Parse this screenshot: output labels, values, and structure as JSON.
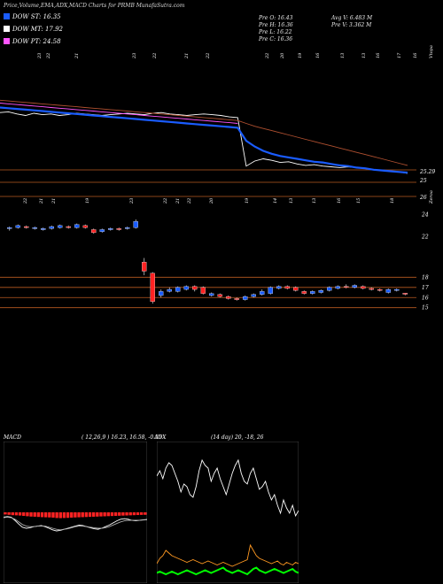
{
  "header": {
    "title": "Price,Volume,EMA,ADX,MACD Charts for PRMB MunafaSutra.com",
    "legend": [
      {
        "label": "DOW ST: 16.35",
        "color": "#1a5cff"
      },
      {
        "label": "DOW MT: 17.92",
        "color": "#ffffff"
      },
      {
        "label": "DOW PT: 24.58",
        "color": "#ff55ff"
      }
    ],
    "stats_col1": [
      "Pre O: 16.43",
      "Pre H: 16.36",
      "Pre L: 16.22",
      "Pre C: 16.36"
    ],
    "stats_col2": [
      "Avg V: 6.483 M",
      "Pre V: 3.362 M"
    ]
  },
  "colors": {
    "bull": "#1a5cff",
    "bear": "#ff2222",
    "ema_long": "#b05030",
    "gridline": "#b85a20",
    "macd_hist": "#ff2222",
    "adx_plus": "#00ff00",
    "adx_minus": "#ff9922"
  },
  "volume_labels": {
    "top": [
      "23",
      "22",
      "21",
      "23",
      "22",
      "21",
      "22",
      "22",
      "20",
      "19",
      "16",
      "13",
      "13",
      "16",
      "17",
      "16",
      "Vtopa"
    ],
    "bottom": [
      "22",
      "21",
      "21",
      "19",
      "23",
      "22",
      "21",
      "22",
      "20",
      "19",
      "14",
      "13",
      "13",
      "16",
      "15",
      "18",
      "Zeroa"
    ]
  },
  "chart_data": [
    {
      "type": "line",
      "panel": "ema",
      "ylabels": [
        "25.29",
        "25",
        "26"
      ],
      "series": [
        {
          "color": "#ffffff",
          "values": [
            24.9,
            25.0,
            24.7,
            24.5,
            24.8,
            24.6,
            24.7,
            24.5,
            24.6,
            24.8,
            24.7,
            24.6,
            24.5,
            24.6,
            24.7,
            24.8,
            24.7,
            24.6,
            24.8,
            24.9,
            24.7,
            24.6,
            24.5,
            24.6,
            24.7,
            24.6,
            24.5,
            24.3,
            24.2,
            17.5,
            18.2,
            18.5,
            18.3,
            18.0,
            18.1,
            17.8,
            17.6,
            17.7,
            17.5,
            17.4,
            17.3,
            17.4,
            17.3,
            17.2,
            17.0,
            16.9,
            16.8,
            16.7,
            16.5
          ]
        },
        {
          "color": "#1a5cff",
          "values": [
            25.6,
            25.5,
            25.4,
            25.3,
            25.2,
            25.1,
            25.0,
            24.9,
            24.8,
            24.7,
            24.6,
            24.5,
            24.4,
            24.3,
            24.2,
            24.1,
            24.0,
            23.9,
            23.8,
            23.7,
            23.6,
            23.5,
            23.4,
            23.3,
            23.2,
            23.1,
            23.0,
            22.9,
            22.8,
            21.0,
            20.2,
            19.6,
            19.2,
            18.9,
            18.7,
            18.5,
            18.3,
            18.1,
            18.0,
            17.8,
            17.6,
            17.5,
            17.3,
            17.2,
            17.0,
            16.9,
            16.8,
            16.7,
            16.6
          ]
        },
        {
          "color": "#ff55ff",
          "values": [
            26.2,
            26.1,
            26.0,
            25.9,
            25.8,
            25.7,
            25.6,
            25.5,
            25.4,
            25.3,
            25.2,
            25.1,
            25.0,
            24.9,
            24.8,
            24.7,
            24.6,
            24.5,
            24.4,
            24.3,
            24.2,
            24.1,
            24.0,
            23.9,
            23.8,
            23.7,
            23.6,
            23.5,
            23.4
          ]
        },
        {
          "color": "#b05030",
          "values": [
            26.6,
            26.5,
            26.4,
            26.3,
            26.2,
            26.1,
            26.0,
            25.9,
            25.8,
            25.7,
            25.6,
            25.5,
            25.4,
            25.3,
            25.2,
            25.1,
            25.0,
            24.9,
            24.8,
            24.7,
            24.6,
            24.5,
            24.4,
            24.3,
            24.2,
            24.1,
            24.0,
            23.9,
            23.8,
            23.4,
            23.0,
            22.7,
            22.4,
            22.1,
            21.8,
            21.5,
            21.2,
            20.9,
            20.6,
            20.3,
            20.0,
            19.7,
            19.4,
            19.1,
            18.8,
            18.5,
            18.2,
            17.9,
            17.6
          ]
        }
      ]
    },
    {
      "type": "candlestick",
      "panel": "price",
      "ylabels": [
        "24",
        "22",
        "18",
        "17",
        "16",
        "15"
      ],
      "candles": [
        {
          "o": 22.8,
          "c": 22.9,
          "h": 23.0,
          "l": 22.6
        },
        {
          "o": 22.9,
          "c": 23.1,
          "h": 23.2,
          "l": 22.8
        },
        {
          "o": 23.0,
          "c": 22.9,
          "h": 23.1,
          "l": 22.8
        },
        {
          "o": 22.8,
          "c": 22.9,
          "h": 23.0,
          "l": 22.7
        },
        {
          "o": 22.7,
          "c": 22.8,
          "h": 22.9,
          "l": 22.6
        },
        {
          "o": 22.8,
          "c": 23.0,
          "h": 23.1,
          "l": 22.7
        },
        {
          "o": 22.9,
          "c": 23.1,
          "h": 23.2,
          "l": 22.8
        },
        {
          "o": 23.0,
          "c": 22.9,
          "h": 23.1,
          "l": 22.8
        },
        {
          "o": 22.9,
          "c": 23.2,
          "h": 23.3,
          "l": 22.8
        },
        {
          "o": 23.1,
          "c": 22.9,
          "h": 23.2,
          "l": 22.8
        },
        {
          "o": 22.7,
          "c": 22.4,
          "h": 22.8,
          "l": 22.3
        },
        {
          "o": 22.5,
          "c": 22.7,
          "h": 22.8,
          "l": 22.4
        },
        {
          "o": 22.7,
          "c": 22.8,
          "h": 22.9,
          "l": 22.6
        },
        {
          "o": 22.8,
          "c": 22.7,
          "h": 22.9,
          "l": 22.6
        },
        {
          "o": 22.8,
          "c": 22.9,
          "h": 23.0,
          "l": 22.7
        },
        {
          "o": 22.9,
          "c": 23.5,
          "h": 23.7,
          "l": 22.8
        },
        {
          "o": 19.5,
          "c": 18.6,
          "h": 19.9,
          "l": 18.2
        },
        {
          "o": 18.4,
          "c": 15.6,
          "h": 18.5,
          "l": 15.4
        },
        {
          "o": 16.2,
          "c": 16.6,
          "h": 16.8,
          "l": 16.0
        },
        {
          "o": 16.6,
          "c": 16.8,
          "h": 17.0,
          "l": 16.5
        },
        {
          "o": 16.6,
          "c": 17.0,
          "h": 17.1,
          "l": 16.5
        },
        {
          "o": 16.8,
          "c": 17.1,
          "h": 17.2,
          "l": 16.7
        },
        {
          "o": 17.1,
          "c": 16.8,
          "h": 17.2,
          "l": 16.6
        },
        {
          "o": 17.0,
          "c": 16.4,
          "h": 17.1,
          "l": 16.3
        },
        {
          "o": 16.2,
          "c": 16.4,
          "h": 16.5,
          "l": 16.1
        },
        {
          "o": 16.3,
          "c": 16.1,
          "h": 16.4,
          "l": 16.0
        },
        {
          "o": 16.1,
          "c": 15.9,
          "h": 16.2,
          "l": 15.8
        },
        {
          "o": 15.9,
          "c": 15.8,
          "h": 16.0,
          "l": 15.7
        },
        {
          "o": 15.8,
          "c": 16.1,
          "h": 16.2,
          "l": 15.7
        },
        {
          "o": 16.1,
          "c": 16.3,
          "h": 16.4,
          "l": 16.0
        },
        {
          "o": 16.3,
          "c": 16.6,
          "h": 16.8,
          "l": 16.2
        },
        {
          "o": 16.4,
          "c": 17.0,
          "h": 17.1,
          "l": 16.3
        },
        {
          "o": 16.9,
          "c": 17.1,
          "h": 17.2,
          "l": 16.8
        },
        {
          "o": 17.1,
          "c": 16.9,
          "h": 17.2,
          "l": 16.8
        },
        {
          "o": 17.0,
          "c": 16.7,
          "h": 17.1,
          "l": 16.6
        },
        {
          "o": 16.6,
          "c": 16.4,
          "h": 16.7,
          "l": 16.3
        },
        {
          "o": 16.4,
          "c": 16.6,
          "h": 16.7,
          "l": 16.3
        },
        {
          "o": 16.5,
          "c": 16.7,
          "h": 16.8,
          "l": 16.4
        },
        {
          "o": 16.7,
          "c": 17.0,
          "h": 17.1,
          "l": 16.6
        },
        {
          "o": 16.9,
          "c": 17.1,
          "h": 17.2,
          "l": 16.8
        },
        {
          "o": 17.1,
          "c": 17.0,
          "h": 17.3,
          "l": 16.9
        },
        {
          "o": 17.0,
          "c": 17.2,
          "h": 17.3,
          "l": 16.9
        },
        {
          "o": 17.1,
          "c": 16.9,
          "h": 17.2,
          "l": 16.8
        },
        {
          "o": 16.9,
          "c": 16.8,
          "h": 17.0,
          "l": 16.7
        },
        {
          "o": 16.8,
          "c": 16.7,
          "h": 16.9,
          "l": 16.6
        },
        {
          "o": 16.5,
          "c": 16.8,
          "h": 16.9,
          "l": 16.4
        },
        {
          "o": 16.7,
          "c": 16.8,
          "h": 16.9,
          "l": 16.6
        },
        {
          "o": 16.43,
          "c": 16.36,
          "h": 16.46,
          "l": 16.22
        }
      ],
      "hlines": [
        18,
        17,
        16,
        15
      ]
    },
    {
      "type": "bar",
      "panel": "macd",
      "title": "MACD",
      "values_text": "( 12,26,9 ) 16.23, 16.58, -0.35",
      "histogram": [
        -0.3,
        -0.35,
        -0.4,
        -0.42,
        -0.45,
        -0.5,
        -0.55,
        -0.6,
        -0.62,
        -0.65,
        -0.68,
        -0.7,
        -0.72,
        -0.75,
        -0.8,
        -0.82,
        -0.8,
        -0.78,
        -0.75,
        -0.72,
        -0.7,
        -0.68,
        -0.66,
        -0.64,
        -0.62,
        -0.6,
        -0.58,
        -0.56,
        -0.54,
        -0.52,
        -0.5,
        -0.48,
        -0.46,
        -0.44,
        -0.42,
        -0.4,
        -0.38,
        -0.36,
        -0.35
      ],
      "macd": [
        0.1,
        0.2,
        0.1,
        -0.5,
        -1.2,
        -1.8,
        -2.0,
        -1.9,
        -1.7,
        -1.6,
        -1.5,
        -1.7,
        -2.0,
        -2.3,
        -2.5,
        -2.4,
        -2.2,
        -2.0,
        -1.8,
        -1.6,
        -1.4,
        -1.5,
        -1.7,
        -1.9,
        -2.1,
        -2.2,
        -2.0,
        -1.7,
        -1.4,
        -1.0,
        -0.6,
        -0.3,
        -0.2,
        -0.3,
        -0.5,
        -0.6,
        -0.5,
        -0.4,
        -0.35
      ],
      "signal": [
        0.0,
        0.1,
        0.0,
        -0.3,
        -0.8,
        -1.3,
        -1.6,
        -1.7,
        -1.7,
        -1.6,
        -1.6,
        -1.6,
        -1.8,
        -2.0,
        -2.2,
        -2.3,
        -2.2,
        -2.1,
        -1.9,
        -1.7,
        -1.6,
        -1.6,
        -1.7,
        -1.8,
        -1.9,
        -2.0,
        -2.0,
        -1.9,
        -1.7,
        -1.4,
        -1.1,
        -0.8,
        -0.6,
        -0.5,
        -0.5,
        -0.5,
        -0.5,
        -0.45,
        -0.4
      ]
    },
    {
      "type": "line",
      "panel": "adx",
      "title": "ADX",
      "values_text": "(14 day) 20, -18, 26",
      "series": [
        {
          "name": "ADX",
          "color": "#ffffff",
          "values": [
            78,
            82,
            76,
            84,
            88,
            86,
            80,
            74,
            66,
            72,
            70,
            64,
            62,
            70,
            82,
            90,
            86,
            84,
            74,
            80,
            84,
            76,
            70,
            64,
            72,
            80,
            86,
            90,
            80,
            74,
            72,
            80,
            84,
            76,
            68,
            70,
            74,
            66,
            60,
            64,
            56,
            50,
            60,
            54,
            50,
            56,
            48,
            52
          ]
        },
        {
          "name": "-DI",
          "color": "#ff9922",
          "values": [
            12,
            16,
            18,
            22,
            20,
            18,
            17,
            16,
            15,
            14,
            13,
            14,
            15,
            14,
            13,
            12,
            13,
            14,
            13,
            12,
            11,
            12,
            13,
            12,
            11,
            10,
            11,
            12,
            13,
            14,
            15,
            26,
            22,
            18,
            16,
            15,
            14,
            13,
            12,
            13,
            14,
            12,
            11,
            13,
            12,
            11,
            13,
            12
          ]
        },
        {
          "name": "+DI",
          "color": "#00ff00",
          "values": [
            5,
            6,
            5,
            4,
            5,
            6,
            5,
            4,
            5,
            6,
            7,
            6,
            5,
            4,
            5,
            6,
            7,
            6,
            5,
            6,
            7,
            8,
            9,
            7,
            6,
            5,
            6,
            7,
            6,
            5,
            4,
            6,
            8,
            9,
            7,
            6,
            5,
            6,
            7,
            8,
            7,
            6,
            5,
            6,
            7,
            8,
            6,
            5
          ]
        }
      ]
    }
  ]
}
